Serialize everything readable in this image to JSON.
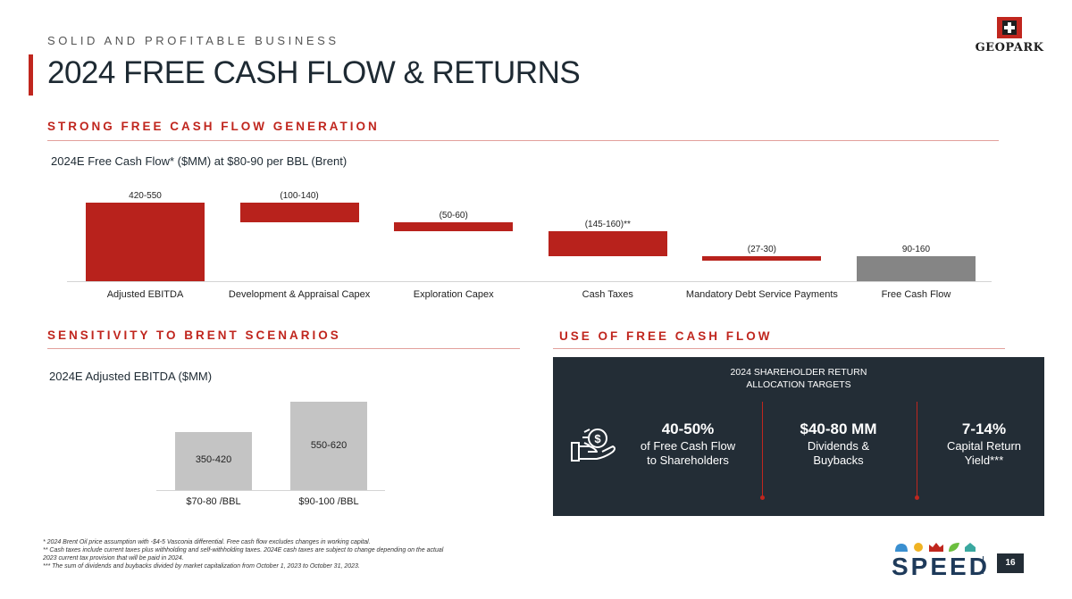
{
  "header": {
    "eyebrow": "SOLID AND PROFITABLE BUSINESS",
    "title": "2024 FREE CASH FLOW & RETURNS",
    "logo_text": "GEOPARK"
  },
  "fcf_section": {
    "heading": "STRONG FREE CASH FLOW GENERATION",
    "subtitle": "2024E Free Cash Flow* ($MM) at $80-90 per BBL (Brent)"
  },
  "chart_data": [
    {
      "type": "bar",
      "title": "2024E Free Cash Flow* ($MM) at $80-90 per BBL (Brent)",
      "categories": [
        "Adjusted EBITDA",
        "Development & Appraisal Capex",
        "Exploration Capex",
        "Cash Taxes",
        "Mandatory Debt Service Payments",
        "Free Cash Flow"
      ],
      "labels": [
        "420-550",
        "(100-140)",
        "(50-60)",
        "(145-160)**",
        "(27-30)",
        "90-160"
      ],
      "values": [
        {
          "low": 0,
          "high": 485
        },
        {
          "low": 365,
          "high": 485
        },
        {
          "low": 310,
          "high": 365
        },
        {
          "low": 155,
          "high": 310
        },
        {
          "low": 125,
          "high": 155
        },
        {
          "low": 0,
          "high": 155
        }
      ],
      "colors": [
        "#b8221c",
        "#b8221c",
        "#b8221c",
        "#b8221c",
        "#b8221c",
        "#858585"
      ]
    },
    {
      "type": "bar",
      "title": "2024E Adjusted EBITDA ($MM)",
      "categories": [
        "$70-80 /BBL",
        "$90-100 /BBL"
      ],
      "labels": [
        "350-420",
        "550-620"
      ],
      "values": [
        385,
        585
      ],
      "colors": [
        "#c4c4c4",
        "#c4c4c4"
      ]
    }
  ],
  "sensitivity_section": {
    "heading": "SENSITIVITY TO BRENT SCENARIOS",
    "subtitle": "2024E Adjusted EBITDA ($MM)"
  },
  "use_section": {
    "heading": "USE OF FREE CASH FLOW",
    "panel_title_1": "2024 SHAREHOLDER RETURN",
    "panel_title_2": "ALLOCATION TARGETS",
    "metrics": [
      {
        "big": "40-50%",
        "line1": "of Free Cash Flow",
        "line2": "to Shareholders"
      },
      {
        "big": "$40-80 MM",
        "line1": "Dividends &",
        "line2": "Buybacks"
      },
      {
        "big": "7-14%",
        "line1": "Capital Return",
        "line2": "Yield***"
      }
    ]
  },
  "footnotes": [
    "* 2024 Brent Oil price assumption with -$4-5 Vasconia differential. Free cash flow excludes changes in working capital.",
    "** Cash taxes include current taxes plus withholding and self-withholding taxes. 2024E cash taxes are subject to change depending on the actual",
    "2023 current tax provision that will be paid in 2024.",
    "*** The sum of dividends and buybacks divided by market capitalization from October 1, 2023 to October 31, 2023."
  ],
  "footer": {
    "brand": "SPEED",
    "page_number": "16"
  }
}
